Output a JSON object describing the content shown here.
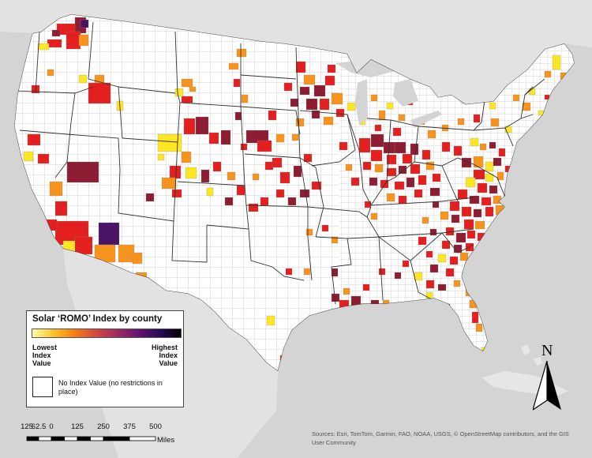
{
  "legend": {
    "title": "Solar ‘ROMO’ Index by county",
    "low_label": "Lowest Index Value",
    "high_label": "Highest Index Value",
    "no_value_label": "No Index Value (no restrictions in place)",
    "ramp_colors": [
      "#fcffa4",
      "#fac228",
      "#f57d15",
      "#d44842",
      "#9f2a63",
      "#65156e",
      "#280b54",
      "#000004"
    ]
  },
  "scale_bar": {
    "ticks": [
      "125",
      "62.5",
      "0",
      "125",
      "250",
      "375",
      "500"
    ],
    "unit": "Miles"
  },
  "north_arrow": {
    "label": "N",
    "icon": "north-arrow-icon"
  },
  "attribution": "Sources: Esri, TomTom, Garmin, FAO, NOAA, USGS, © OpenStreetMap contributors, and the GIS User Community",
  "colors": {
    "land": "#ffffff",
    "water": "#d4d4d4",
    "county_border": "#9a9a9a",
    "state_border": "#333333",
    "index_yellow": "#fde725",
    "index_orange": "#f7941d",
    "index_red": "#e3201f",
    "index_darkred": "#8c1d32",
    "index_purple": "#4a1363"
  }
}
